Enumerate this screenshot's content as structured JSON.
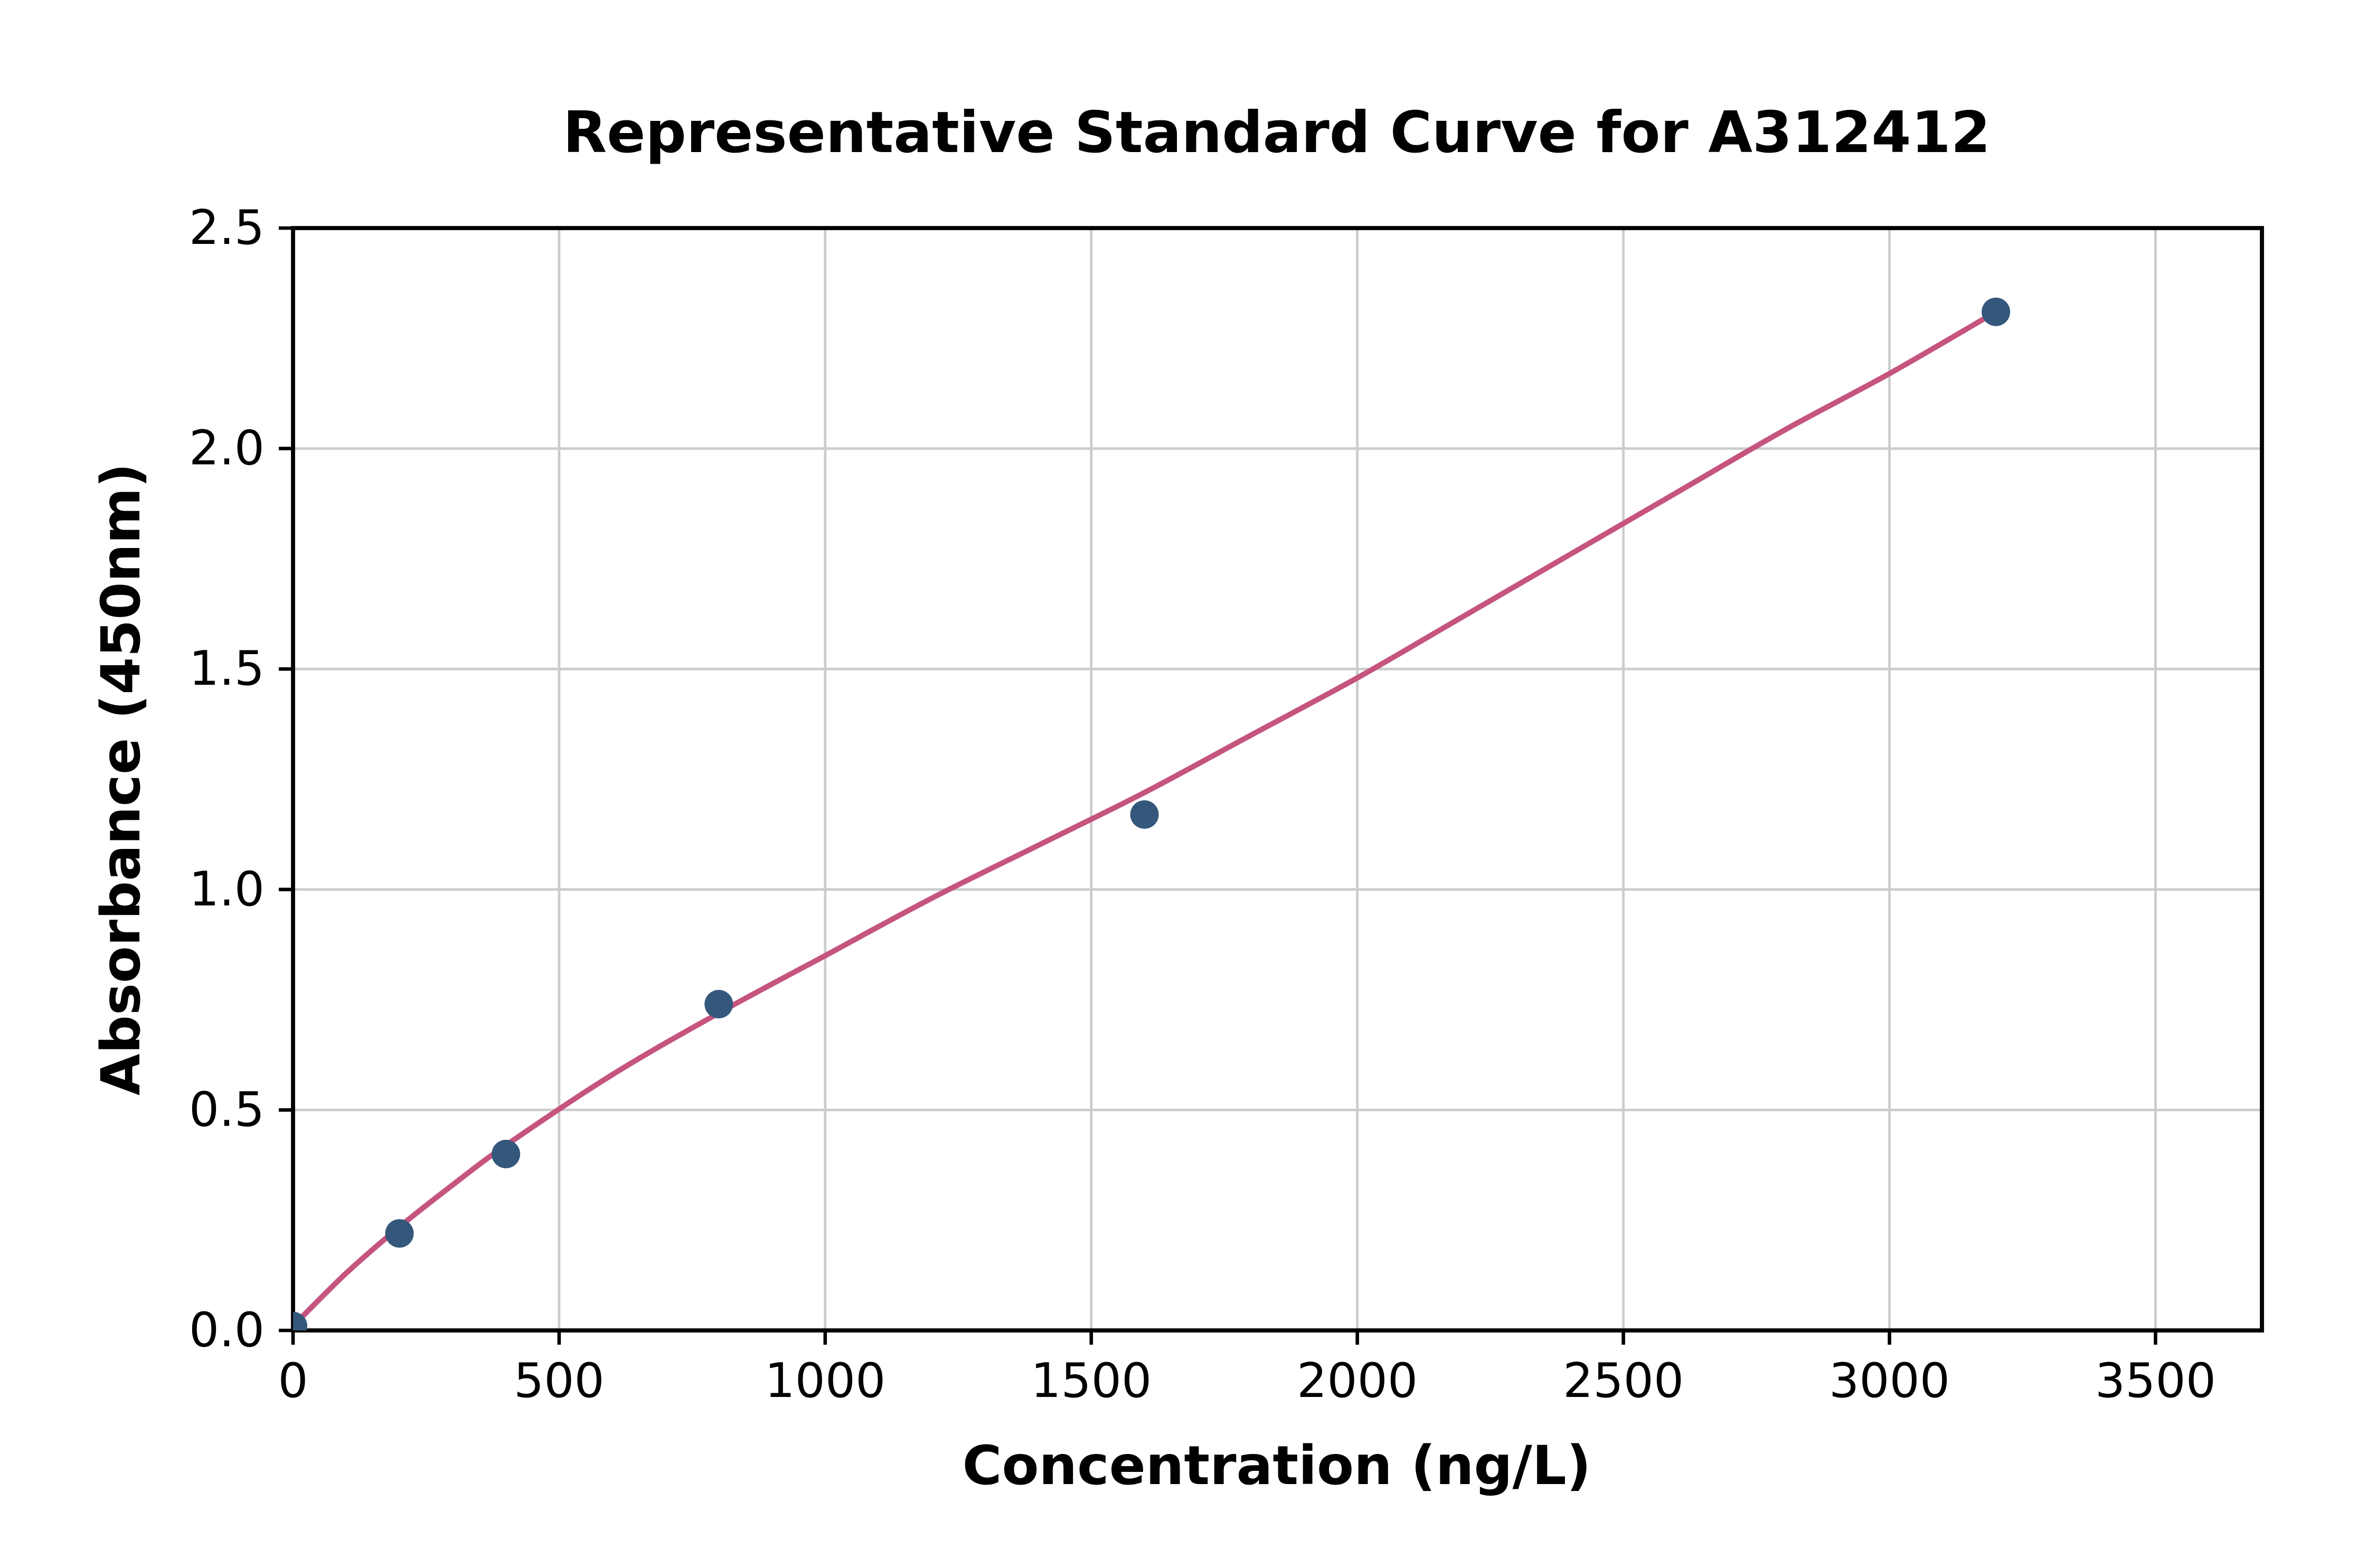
{
  "figure": {
    "background": "#ffffff"
  },
  "chart_data": {
    "type": "scatter",
    "title": "Representative Standard Curve for A312412",
    "xlabel": "Concentration (ng/L)",
    "ylabel": "Absorbance (450nm)",
    "xlim": [
      0,
      3700
    ],
    "ylim": [
      0,
      2.5
    ],
    "grid": true,
    "legend": false,
    "x_ticks": [
      0,
      500,
      1000,
      1500,
      2000,
      2500,
      3000,
      3500
    ],
    "x_tick_labels": [
      "0",
      "500",
      "1000",
      "1500",
      "2000",
      "2500",
      "3000",
      "3500"
    ],
    "y_ticks": [
      0.0,
      0.5,
      1.0,
      1.5,
      2.0,
      2.5
    ],
    "y_tick_labels": [
      "0.0",
      "0.5",
      "1.0",
      "1.5",
      "2.0",
      "2.5"
    ],
    "series": [
      {
        "name": "standards",
        "type": "scatter",
        "x": [
          0,
          200,
          400,
          800,
          1600,
          3200
        ],
        "y": [
          0.01,
          0.22,
          0.4,
          0.74,
          1.17,
          2.31
        ],
        "color": "#34577c",
        "marker_radius": 9
      },
      {
        "name": "fit-curve",
        "type": "line",
        "x": [
          0,
          100,
          200,
          300,
          400,
          600,
          800,
          1000,
          1200,
          1400,
          1600,
          1800,
          2000,
          2200,
          2400,
          2600,
          2800,
          3000,
          3200
        ],
        "y": [
          0.01,
          0.13,
          0.235,
          0.33,
          0.42,
          0.58,
          0.72,
          0.85,
          0.98,
          1.1,
          1.22,
          1.35,
          1.48,
          1.62,
          1.76,
          1.9,
          2.04,
          2.17,
          2.31
        ],
        "color": "#c5547e"
      }
    ],
    "colors": {
      "grid": "#cccccc",
      "spine": "#000000",
      "text": "#000000"
    }
  }
}
